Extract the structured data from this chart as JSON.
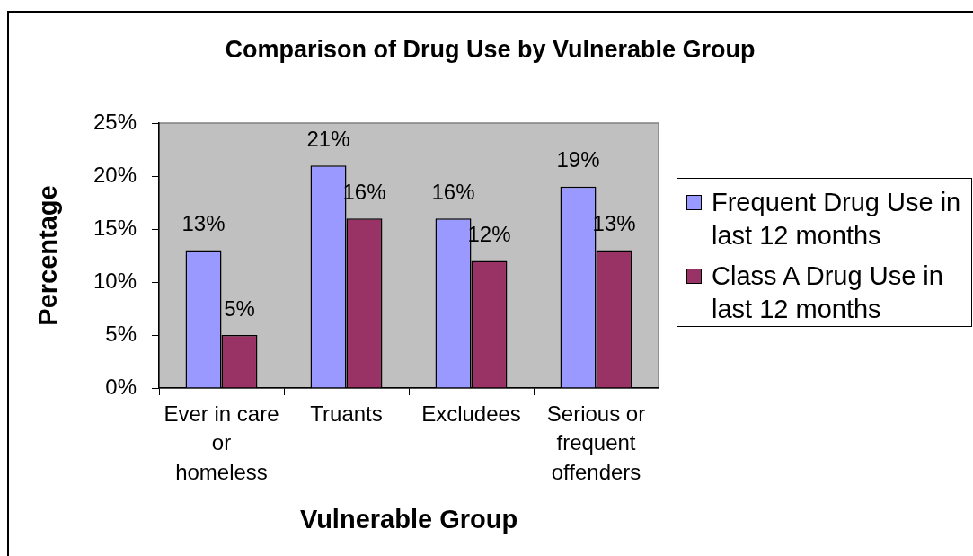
{
  "chart_data": {
    "type": "bar",
    "title": "Comparison of Drug Use by Vulnerable Group",
    "xlabel": "Vulnerable Group",
    "ylabel": "Percentage",
    "categories": [
      "Ever in care or homeless",
      "Truants",
      "Excludees",
      "Serious or frequent offenders"
    ],
    "series": [
      {
        "name": "Frequent Drug Use in last 12 months",
        "color": "#9999ff",
        "values": [
          13,
          21,
          16,
          19
        ],
        "value_labels": [
          "13%",
          "21%",
          "16%",
          "19%"
        ]
      },
      {
        "name": "Class A Drug Use in last 12 months",
        "color": "#993366",
        "values": [
          5,
          16,
          12,
          13
        ],
        "value_labels": [
          "5%",
          "16%",
          "12%",
          "13%"
        ]
      }
    ],
    "ylim": [
      0,
      25
    ],
    "yticks": [
      {
        "value": 0,
        "label": "0%"
      },
      {
        "value": 5,
        "label": "5%"
      },
      {
        "value": 10,
        "label": "10%"
      },
      {
        "value": 15,
        "label": "15%"
      },
      {
        "value": 20,
        "label": "20%"
      },
      {
        "value": 25,
        "label": "25%"
      }
    ],
    "grid": false,
    "legend": "right"
  }
}
